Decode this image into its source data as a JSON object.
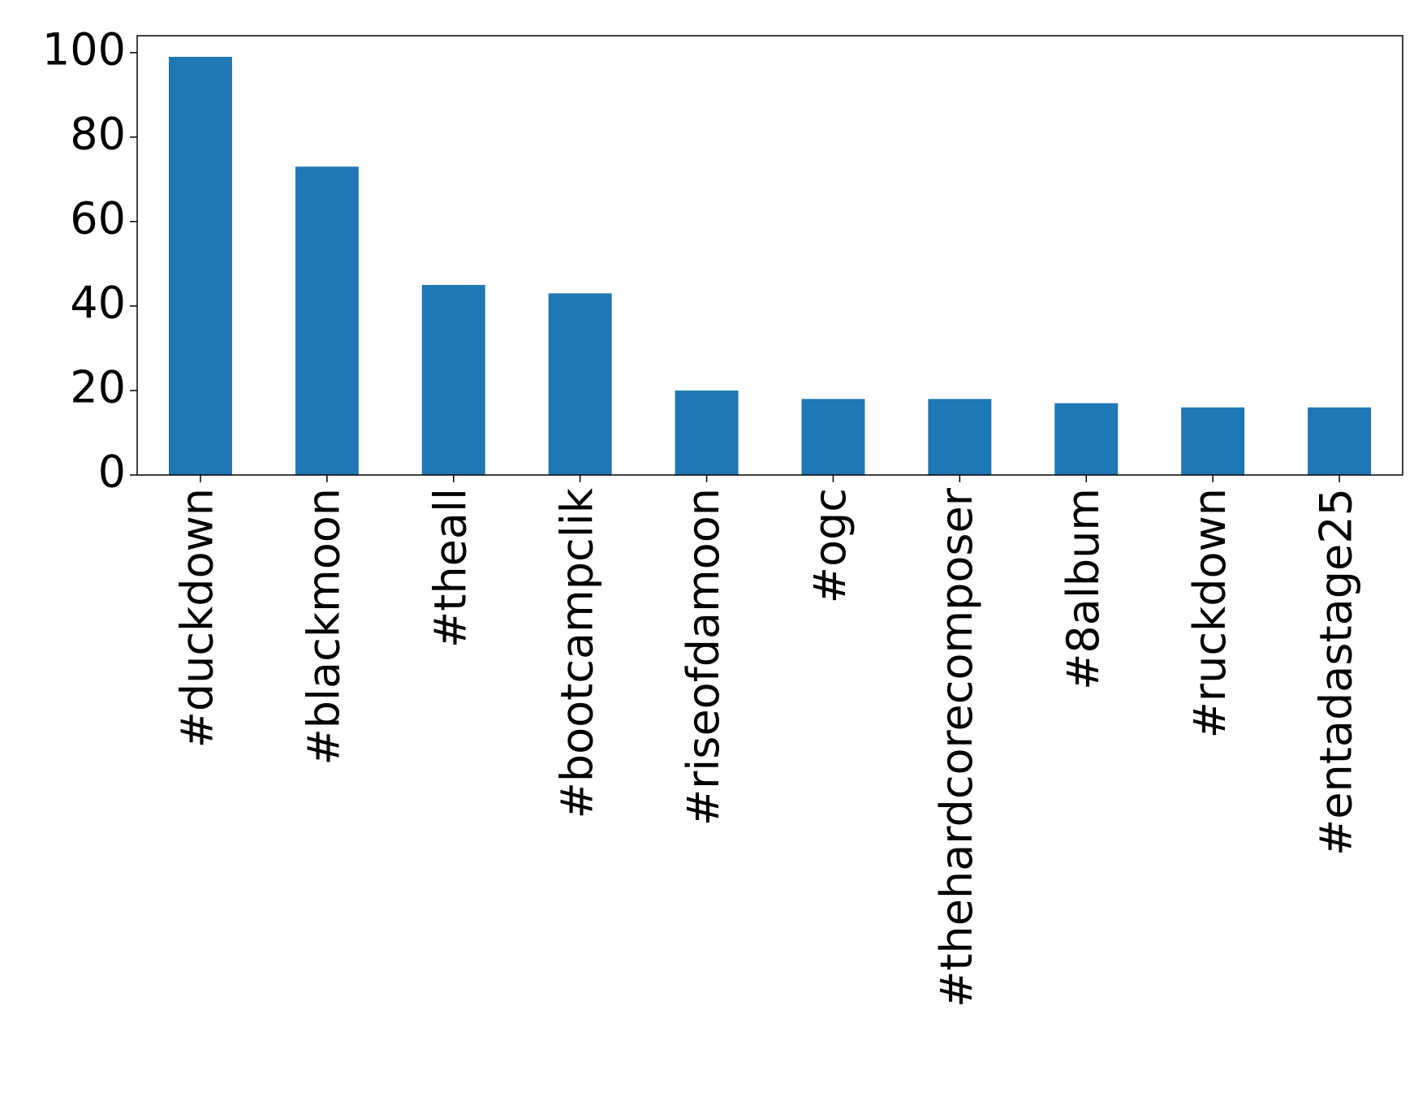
{
  "chart_data": {
    "type": "bar",
    "categories": [
      "#duckdown",
      "#blackmoon",
      "#theall",
      "#bootcampclik",
      "#riseofdamoon",
      "#ogc",
      "#thehardcorecomposer",
      "#8album",
      "#ruckdown",
      "#entadastage25"
    ],
    "values": [
      99,
      73,
      45,
      43,
      20,
      18,
      18,
      17,
      16,
      16
    ],
    "color": "#1f77b4",
    "ylim": [
      0,
      104
    ],
    "yticks": [
      0,
      20,
      40,
      60,
      80,
      100
    ],
    "grid": false
  }
}
